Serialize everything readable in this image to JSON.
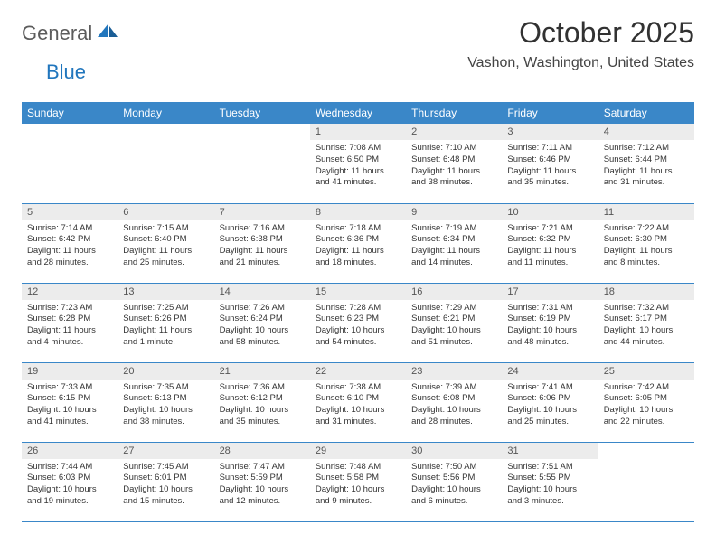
{
  "logo": {
    "general": "General",
    "blue": "Blue"
  },
  "title": "October 2025",
  "location": "Vashon, Washington, United States",
  "colors": {
    "header_bg": "#3a87c8",
    "header_text": "#ffffff",
    "daynum_bg": "#ececec",
    "border": "#3a87c8",
    "logo_blue": "#2176bd",
    "logo_gray": "#5c5c5c"
  },
  "weekdays": [
    "Sunday",
    "Monday",
    "Tuesday",
    "Wednesday",
    "Thursday",
    "Friday",
    "Saturday"
  ],
  "cells": [
    [
      null,
      null,
      null,
      {
        "n": "1",
        "sr": "Sunrise: 7:08 AM",
        "ss": "Sunset: 6:50 PM",
        "dl": "Daylight: 11 hours and 41 minutes."
      },
      {
        "n": "2",
        "sr": "Sunrise: 7:10 AM",
        "ss": "Sunset: 6:48 PM",
        "dl": "Daylight: 11 hours and 38 minutes."
      },
      {
        "n": "3",
        "sr": "Sunrise: 7:11 AM",
        "ss": "Sunset: 6:46 PM",
        "dl": "Daylight: 11 hours and 35 minutes."
      },
      {
        "n": "4",
        "sr": "Sunrise: 7:12 AM",
        "ss": "Sunset: 6:44 PM",
        "dl": "Daylight: 11 hours and 31 minutes."
      }
    ],
    [
      {
        "n": "5",
        "sr": "Sunrise: 7:14 AM",
        "ss": "Sunset: 6:42 PM",
        "dl": "Daylight: 11 hours and 28 minutes."
      },
      {
        "n": "6",
        "sr": "Sunrise: 7:15 AM",
        "ss": "Sunset: 6:40 PM",
        "dl": "Daylight: 11 hours and 25 minutes."
      },
      {
        "n": "7",
        "sr": "Sunrise: 7:16 AM",
        "ss": "Sunset: 6:38 PM",
        "dl": "Daylight: 11 hours and 21 minutes."
      },
      {
        "n": "8",
        "sr": "Sunrise: 7:18 AM",
        "ss": "Sunset: 6:36 PM",
        "dl": "Daylight: 11 hours and 18 minutes."
      },
      {
        "n": "9",
        "sr": "Sunrise: 7:19 AM",
        "ss": "Sunset: 6:34 PM",
        "dl": "Daylight: 11 hours and 14 minutes."
      },
      {
        "n": "10",
        "sr": "Sunrise: 7:21 AM",
        "ss": "Sunset: 6:32 PM",
        "dl": "Daylight: 11 hours and 11 minutes."
      },
      {
        "n": "11",
        "sr": "Sunrise: 7:22 AM",
        "ss": "Sunset: 6:30 PM",
        "dl": "Daylight: 11 hours and 8 minutes."
      }
    ],
    [
      {
        "n": "12",
        "sr": "Sunrise: 7:23 AM",
        "ss": "Sunset: 6:28 PM",
        "dl": "Daylight: 11 hours and 4 minutes."
      },
      {
        "n": "13",
        "sr": "Sunrise: 7:25 AM",
        "ss": "Sunset: 6:26 PM",
        "dl": "Daylight: 11 hours and 1 minute."
      },
      {
        "n": "14",
        "sr": "Sunrise: 7:26 AM",
        "ss": "Sunset: 6:24 PM",
        "dl": "Daylight: 10 hours and 58 minutes."
      },
      {
        "n": "15",
        "sr": "Sunrise: 7:28 AM",
        "ss": "Sunset: 6:23 PM",
        "dl": "Daylight: 10 hours and 54 minutes."
      },
      {
        "n": "16",
        "sr": "Sunrise: 7:29 AM",
        "ss": "Sunset: 6:21 PM",
        "dl": "Daylight: 10 hours and 51 minutes."
      },
      {
        "n": "17",
        "sr": "Sunrise: 7:31 AM",
        "ss": "Sunset: 6:19 PM",
        "dl": "Daylight: 10 hours and 48 minutes."
      },
      {
        "n": "18",
        "sr": "Sunrise: 7:32 AM",
        "ss": "Sunset: 6:17 PM",
        "dl": "Daylight: 10 hours and 44 minutes."
      }
    ],
    [
      {
        "n": "19",
        "sr": "Sunrise: 7:33 AM",
        "ss": "Sunset: 6:15 PM",
        "dl": "Daylight: 10 hours and 41 minutes."
      },
      {
        "n": "20",
        "sr": "Sunrise: 7:35 AM",
        "ss": "Sunset: 6:13 PM",
        "dl": "Daylight: 10 hours and 38 minutes."
      },
      {
        "n": "21",
        "sr": "Sunrise: 7:36 AM",
        "ss": "Sunset: 6:12 PM",
        "dl": "Daylight: 10 hours and 35 minutes."
      },
      {
        "n": "22",
        "sr": "Sunrise: 7:38 AM",
        "ss": "Sunset: 6:10 PM",
        "dl": "Daylight: 10 hours and 31 minutes."
      },
      {
        "n": "23",
        "sr": "Sunrise: 7:39 AM",
        "ss": "Sunset: 6:08 PM",
        "dl": "Daylight: 10 hours and 28 minutes."
      },
      {
        "n": "24",
        "sr": "Sunrise: 7:41 AM",
        "ss": "Sunset: 6:06 PM",
        "dl": "Daylight: 10 hours and 25 minutes."
      },
      {
        "n": "25",
        "sr": "Sunrise: 7:42 AM",
        "ss": "Sunset: 6:05 PM",
        "dl": "Daylight: 10 hours and 22 minutes."
      }
    ],
    [
      {
        "n": "26",
        "sr": "Sunrise: 7:44 AM",
        "ss": "Sunset: 6:03 PM",
        "dl": "Daylight: 10 hours and 19 minutes."
      },
      {
        "n": "27",
        "sr": "Sunrise: 7:45 AM",
        "ss": "Sunset: 6:01 PM",
        "dl": "Daylight: 10 hours and 15 minutes."
      },
      {
        "n": "28",
        "sr": "Sunrise: 7:47 AM",
        "ss": "Sunset: 5:59 PM",
        "dl": "Daylight: 10 hours and 12 minutes."
      },
      {
        "n": "29",
        "sr": "Sunrise: 7:48 AM",
        "ss": "Sunset: 5:58 PM",
        "dl": "Daylight: 10 hours and 9 minutes."
      },
      {
        "n": "30",
        "sr": "Sunrise: 7:50 AM",
        "ss": "Sunset: 5:56 PM",
        "dl": "Daylight: 10 hours and 6 minutes."
      },
      {
        "n": "31",
        "sr": "Sunrise: 7:51 AM",
        "ss": "Sunset: 5:55 PM",
        "dl": "Daylight: 10 hours and 3 minutes."
      },
      null
    ]
  ]
}
